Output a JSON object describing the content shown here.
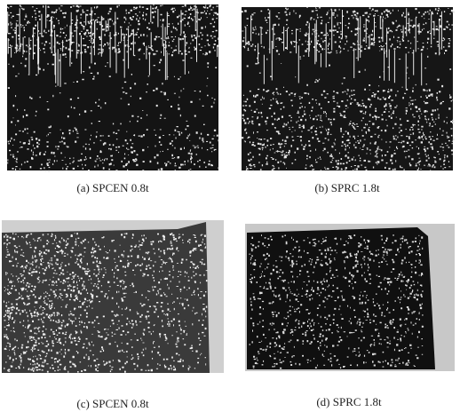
{
  "figure": {
    "panels": [
      {
        "caption": "(a) SPCEN 0.8t"
      },
      {
        "caption": "(b) SPRC 1.8t"
      },
      {
        "caption": "(c) SPCEN 0.8t"
      },
      {
        "caption": "(d) SPRC 1.8t"
      }
    ]
  }
}
